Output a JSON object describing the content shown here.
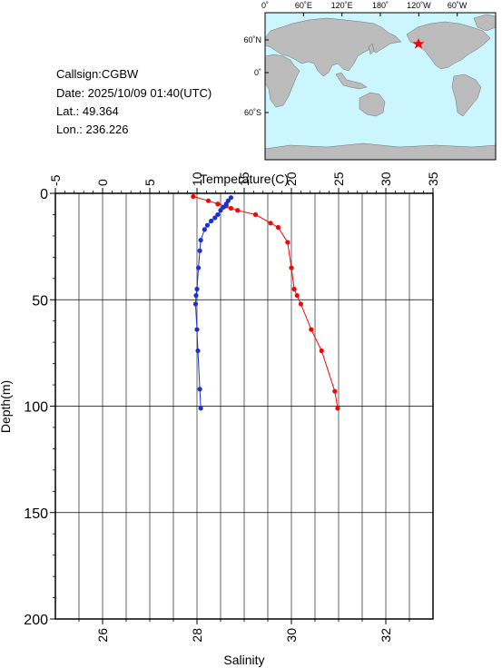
{
  "info": {
    "callsign": "Callsign:CGBW",
    "date": "Date:  2025/10/09 01:40(UTC)",
    "lat": "Lat.:  49.364",
    "lon": "Lon.:  236.226"
  },
  "map": {
    "top_labels": [
      "0˚",
      "60˚E",
      "120˚E",
      "180˚",
      "120˚W",
      "60˚W"
    ],
    "left_labels": [
      "60˚N",
      "0˚",
      "60˚S"
    ],
    "ocean_color": "#ccf6ff",
    "land_color": "#bcbcbc",
    "marker_color": "#ff0000",
    "marker_icon": "star-icon"
  },
  "chart_data": {
    "type": "line",
    "ylabel": "Depth(m)",
    "y_ticks": [
      0,
      50,
      100,
      150,
      200
    ],
    "ylim": [
      0,
      200
    ],
    "y_inverted": true,
    "temperature_axis": {
      "label": "Temperature(C)",
      "ticks": [
        -5,
        0,
        5,
        10,
        15,
        20,
        25,
        30,
        35
      ],
      "range": [
        -5,
        35
      ],
      "position": "top"
    },
    "salinity_axis": {
      "label": "Salinity",
      "ticks": [
        26,
        28,
        30,
        32
      ],
      "range": [
        25,
        33
      ],
      "position": "bottom"
    },
    "grid": true,
    "series": [
      {
        "name": "Temperature",
        "color": "#ff0000",
        "axis": "temperature",
        "points": [
          [
            9.6,
            1.5
          ],
          [
            11.2,
            3.5
          ],
          [
            12.2,
            5
          ],
          [
            13.1,
            6
          ],
          [
            13.6,
            7
          ],
          [
            14.3,
            8
          ],
          [
            16.2,
            10
          ],
          [
            17.8,
            14
          ],
          [
            18.6,
            16
          ],
          [
            19.6,
            23
          ],
          [
            20.0,
            35
          ],
          [
            20.3,
            45
          ],
          [
            20.6,
            48
          ],
          [
            21.0,
            52
          ],
          [
            22.1,
            64
          ],
          [
            23.2,
            74
          ],
          [
            24.6,
            93
          ],
          [
            24.9,
            101
          ]
        ]
      },
      {
        "name": "Salinity",
        "color": "#1a2fd6",
        "axis": "salinity",
        "points": [
          [
            28.72,
            2
          ],
          [
            28.66,
            3.5
          ],
          [
            28.62,
            5
          ],
          [
            28.56,
            6.5
          ],
          [
            28.5,
            8
          ],
          [
            28.44,
            10
          ],
          [
            28.38,
            11.5
          ],
          [
            28.3,
            13
          ],
          [
            28.22,
            15
          ],
          [
            28.16,
            17
          ],
          [
            28.08,
            22
          ],
          [
            28.06,
            27
          ],
          [
            28.03,
            35
          ],
          [
            28.0,
            45
          ],
          [
            27.98,
            48
          ],
          [
            27.97,
            52
          ],
          [
            28.0,
            64
          ],
          [
            28.02,
            74
          ],
          [
            28.06,
            92
          ],
          [
            28.08,
            101
          ]
        ]
      }
    ]
  }
}
